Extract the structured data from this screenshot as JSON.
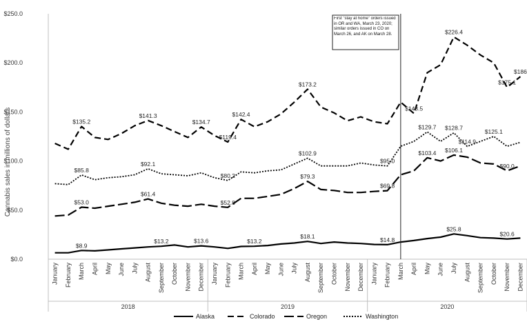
{
  "chart_data": {
    "type": "line",
    "ylabel": "Cannabis sales in millions of dollars",
    "ylim": [
      0,
      250
    ],
    "yticks": [
      "$0.0",
      "$50.0",
      "$100.0",
      "$150.0",
      "$200.0",
      "$250.0"
    ],
    "months": [
      "January",
      "February",
      "March",
      "April",
      "May",
      "June",
      "July",
      "August",
      "September",
      "October",
      "November",
      "December"
    ],
    "years": [
      "2018",
      "2019",
      "2020"
    ],
    "grid": false,
    "legend_position": "bottom",
    "series": [
      {
        "name": "Alaska",
        "style": "solid",
        "values": [
          6.5,
          6.5,
          8.9,
          8.5,
          9.5,
          10.5,
          11.5,
          12.5,
          13.2,
          14.5,
          12.5,
          13.6,
          12.5,
          11.0,
          13.0,
          13.2,
          14.0,
          15.5,
          16.5,
          18.1,
          16.0,
          17.5,
          16.5,
          16.0,
          15.0,
          14.8,
          17.5,
          19.0,
          21.0,
          22.5,
          25.8,
          24.0,
          22.0,
          21.5,
          20.6,
          21.5
        ],
        "labels": [
          [
            2,
            "$8.9"
          ],
          [
            8,
            "$13.2"
          ],
          [
            11,
            "$13.6"
          ],
          [
            15,
            "$13.2"
          ],
          [
            19,
            "$18.1"
          ],
          [
            25,
            "$14.8"
          ],
          [
            30,
            "$25.8"
          ],
          [
            34,
            "$20.6"
          ]
        ]
      },
      {
        "name": "Colorado",
        "style": "dash",
        "values": [
          118,
          112,
          135.2,
          124,
          122,
          128,
          136,
          141.3,
          136,
          130,
          124,
          134.7,
          126,
          119.4,
          142.4,
          135,
          140,
          148,
          160,
          173.2,
          155,
          149,
          141,
          145,
          140,
          138,
          160,
          148.5,
          190,
          198,
          226.4,
          218,
          208,
          200,
          175.1,
          186
        ],
        "labels": [
          [
            2,
            "$135.2"
          ],
          [
            7,
            "$141.3"
          ],
          [
            11,
            "$134.7"
          ],
          [
            13,
            "$119.4"
          ],
          [
            14,
            "$142.4"
          ],
          [
            19,
            "$173.2"
          ],
          [
            27,
            "$148.5"
          ],
          [
            30,
            "$226.4"
          ],
          [
            34,
            "$175.1"
          ],
          [
            35,
            "$186"
          ]
        ]
      },
      {
        "name": "Oregon",
        "style": "longdash",
        "values": [
          44,
          45,
          53.0,
          52,
          54,
          56,
          58,
          61.4,
          57,
          55,
          54,
          56,
          54,
          52.8,
          62,
          62,
          64,
          66,
          72,
          79.3,
          71,
          70,
          68,
          68,
          69,
          69.8,
          86,
          90,
          103.4,
          100,
          106.1,
          104,
          98,
          97,
          90.0,
          95
        ],
        "labels": [
          [
            2,
            "$53.0"
          ],
          [
            7,
            "$61.4"
          ],
          [
            13,
            "$52.8"
          ],
          [
            19,
            "$79.3"
          ],
          [
            25,
            "$69.8"
          ],
          [
            28,
            "$103.4"
          ],
          [
            30,
            "$106.1"
          ],
          [
            34,
            "$90.0"
          ]
        ]
      },
      {
        "name": "Washington",
        "style": "dot",
        "values": [
          77,
          76,
          85.8,
          81,
          83,
          84,
          86,
          92.1,
          87,
          86,
          85,
          88,
          83,
          80.2,
          89,
          88,
          90,
          91,
          97,
          102.9,
          95,
          95,
          95,
          98,
          96,
          95.0,
          115,
          120,
          129.7,
          120,
          128.7,
          114.9,
          120,
          125.1,
          115,
          119
        ],
        "labels": [
          [
            2,
            "$85.8"
          ],
          [
            7,
            "$92.1"
          ],
          [
            13,
            "$80.2"
          ],
          [
            19,
            "$102.9"
          ],
          [
            25,
            "$95.0"
          ],
          [
            28,
            "$129.7"
          ],
          [
            30,
            "$128.7"
          ],
          [
            31,
            "$114.9"
          ],
          [
            33,
            "$125.1"
          ]
        ]
      }
    ],
    "annotation": "First \"stay at home\" orders issued in OR and WA, March 23, 2020; similar orders issued in CO on March 26, and AK on March 28."
  }
}
